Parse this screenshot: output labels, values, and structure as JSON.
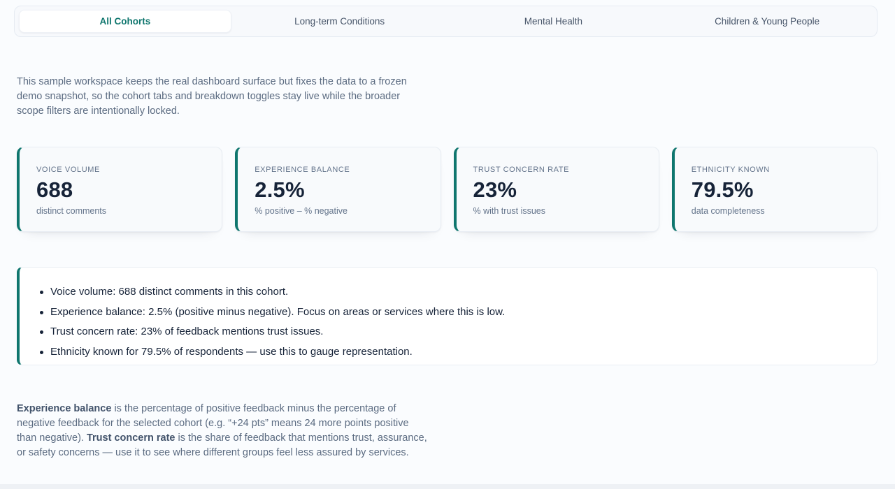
{
  "tabs": {
    "items": [
      {
        "label": "All Cohorts",
        "active": true
      },
      {
        "label": "Long-term Conditions",
        "active": false
      },
      {
        "label": "Mental Health",
        "active": false
      },
      {
        "label": "Children & Young People",
        "active": false
      }
    ]
  },
  "intro": {
    "text": "This sample workspace keeps the real dashboard surface but fixes the data to a frozen demo snapshot, so the cohort tabs and breakdown toggles stay live while the broader scope filters are intentionally locked."
  },
  "stat_cards": [
    {
      "label": "VOICE VOLUME",
      "value": "688",
      "sub": "distinct comments"
    },
    {
      "label": "EXPERIENCE BALANCE",
      "value": "2.5%",
      "sub": "% positive – % negative"
    },
    {
      "label": "TRUST CONCERN RATE",
      "value": "23%",
      "sub": "% with trust issues"
    },
    {
      "label": "ETHNICITY KNOWN",
      "value": "79.5%",
      "sub": "data completeness"
    }
  ],
  "summary": {
    "bullets": [
      "Voice volume: 688 distinct comments in this cohort.",
      "Experience balance: 2.5% (positive minus negative). Focus on areas or services where this is low.",
      "Trust concern rate: 23% of feedback mentions trust issues.",
      "Ethnicity known for 79.5% of respondents — use this to gauge representation."
    ]
  },
  "glossary": {
    "term1": "Experience balance",
    "text1": " is the percentage of positive feedback minus the percentage of negative feedback for the selected cohort (e.g. “+24 pts” means 24 more points positive than negative). ",
    "term2": "Trust concern rate",
    "text2": " is the share of feedback that mentions trust, assurance, or safety concerns — use it to see where different groups feel less assured by services."
  },
  "colors": {
    "accent_teal": "#0f766e",
    "value_text": "#162338",
    "muted_text": "#64748b",
    "body_text": "#5b6b81",
    "border": "#e8edf3",
    "page_bg": "#fafcfe",
    "card_bg": "#f8fafc",
    "panel_bg": "#ffffff"
  }
}
